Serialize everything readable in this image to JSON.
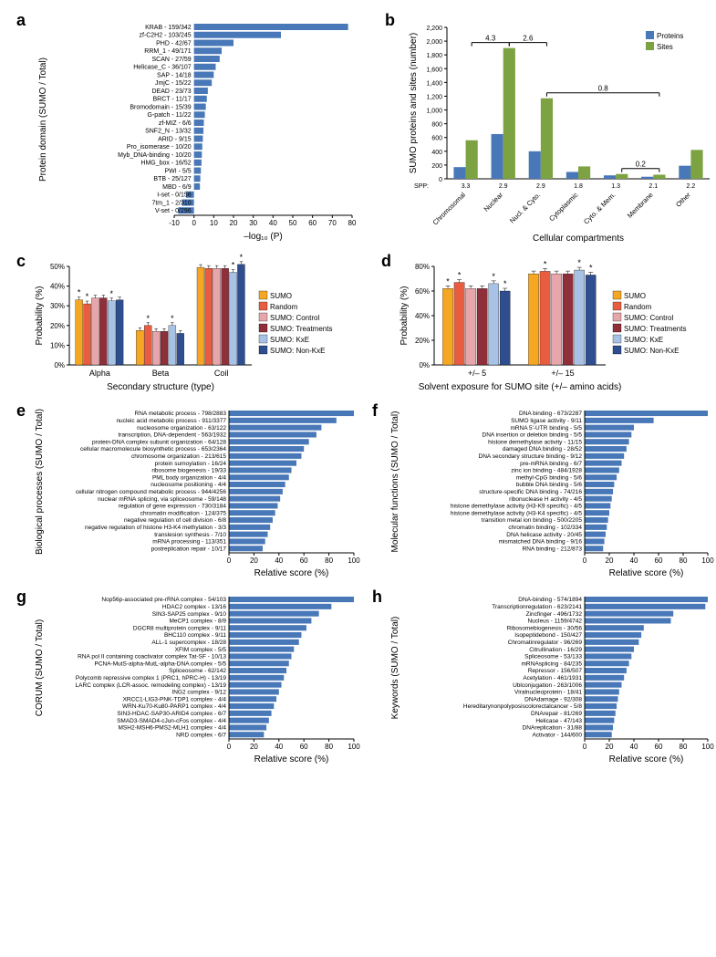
{
  "global": {
    "bar_color": "#4878b8",
    "axis_color": "#000000",
    "font": "Arial"
  },
  "a": {
    "label": "a",
    "type": "bar-h",
    "ylabel_items": [
      {
        "name": "KRAB - 159/342",
        "v": 78
      },
      {
        "name": "zf-C2H2 - 103/245",
        "v": 44
      },
      {
        "name": "PHD - 42/67",
        "v": 20
      },
      {
        "name": "RRM_1 - 49/171",
        "v": 14
      },
      {
        "name": "SCAN - 27/59",
        "v": 13
      },
      {
        "name": "Helicase_C - 36/107",
        "v": 11
      },
      {
        "name": "SAP - 14/18",
        "v": 10
      },
      {
        "name": "JmjC - 15/22",
        "v": 9
      },
      {
        "name": "DEAD - 23/73",
        "v": 7
      },
      {
        "name": "BRCT - 11/17",
        "v": 6.5
      },
      {
        "name": "Bromodomain - 15/39",
        "v": 6
      },
      {
        "name": "G-patch - 11/22",
        "v": 5.5
      },
      {
        "name": "zf-MIZ - 6/6",
        "v": 5
      },
      {
        "name": "SNF2_N - 13/32",
        "v": 4.8
      },
      {
        "name": "ARID - 9/15",
        "v": 4.5
      },
      {
        "name": "Pro_isomerase - 10/20",
        "v": 4.2
      },
      {
        "name": "Myb_DNA-binding - 10/20",
        "v": 4
      },
      {
        "name": "HMG_box - 16/52",
        "v": 3.8
      },
      {
        "name": "PWI - 5/5",
        "v": 3.5
      },
      {
        "name": "BTB - 25/127",
        "v": 3.2
      },
      {
        "name": "MBD - 6/9",
        "v": 3
      },
      {
        "name": "I-set - 0/156",
        "v": -4
      },
      {
        "name": "7tm_1 - 2/310",
        "v": -6
      },
      {
        "name": "V-set - 0/296",
        "v": -8
      }
    ],
    "xlabel": "–log₁₀ (P)",
    "ylabel": "Protein domain (SUMO / Total)",
    "xmin": -10,
    "xmax": 80,
    "xtick_step": 10
  },
  "b": {
    "label": "b",
    "type": "bar-grouped",
    "title": "",
    "legend": [
      {
        "name": "Proteins",
        "color": "#4878b8"
      },
      {
        "name": "Sites",
        "color": "#7ca242"
      }
    ],
    "categories": [
      "Chromosomal",
      "Nuclear",
      "Nucl. & Cyto.",
      "Cytoplasmic",
      "Cyto. & Mem.",
      "Membrane",
      "Other"
    ],
    "spp": [
      "3.3",
      "2.9",
      "2.9",
      "1.8",
      "1.3",
      "2.1",
      "2.2"
    ],
    "proteins": [
      170,
      650,
      400,
      100,
      50,
      30,
      190
    ],
    "sites": [
      560,
      1900,
      1170,
      180,
      70,
      60,
      420
    ],
    "ratio_brackets": [
      {
        "from": 0,
        "to": 1,
        "label": "4.3"
      },
      {
        "from": 1,
        "to": 2,
        "label": "2.6"
      },
      {
        "from": 2,
        "to": 5,
        "label": "0.8"
      },
      {
        "from": 4,
        "to": 5,
        "label": "0.2"
      }
    ],
    "xlabel": "Cellular compartments",
    "ylabel": "SUMO proteins and sites (number)",
    "ymin": 0,
    "ymax": 2200,
    "ytick_step": 200,
    "spp_label": "SPP:"
  },
  "c": {
    "label": "c",
    "type": "bar-grouped",
    "legend": [
      {
        "name": "SUMO",
        "color": "#f5a623"
      },
      {
        "name": "Random",
        "color": "#e85c3f"
      },
      {
        "name": "SUMO: Control",
        "color": "#e7a5ac"
      },
      {
        "name": "SUMO: Treatments",
        "color": "#8e2f3a"
      },
      {
        "name": "SUMO: KxE",
        "color": "#a7c2e5"
      },
      {
        "name": "SUMO: Non-KxE",
        "color": "#2e4e8f"
      }
    ],
    "groups": [
      "Alpha",
      "Beta",
      "Coil"
    ],
    "values": [
      [
        33,
        31,
        34,
        34,
        32.5,
        33
      ],
      [
        17.5,
        20,
        17,
        17,
        20,
        16
      ],
      [
        49.5,
        49,
        49,
        49,
        47,
        51
      ]
    ],
    "sig": [
      [
        true,
        true,
        false,
        false,
        true,
        false
      ],
      [
        false,
        true,
        false,
        false,
        true,
        false
      ],
      [
        false,
        false,
        false,
        false,
        true,
        true
      ]
    ],
    "xlabel": "Secondary structure (type)",
    "ylabel": "Probability (%)",
    "ymin": 0,
    "ymax": 50,
    "yticks": [
      0,
      10,
      20,
      30,
      40,
      50
    ],
    "star": "*"
  },
  "d": {
    "label": "d",
    "type": "bar-grouped",
    "legend_shared_with": "c",
    "legend": [
      {
        "name": "SUMO",
        "color": "#f5a623"
      },
      {
        "name": "Random",
        "color": "#e85c3f"
      },
      {
        "name": "SUMO: Control",
        "color": "#e7a5ac"
      },
      {
        "name": "SUMO: Treatments",
        "color": "#8e2f3a"
      },
      {
        "name": "SUMO: KxE",
        "color": "#a7c2e5"
      },
      {
        "name": "SUMO: Non-KxE",
        "color": "#2e4e8f"
      }
    ],
    "groups": [
      "+/– 5",
      "+/– 15"
    ],
    "values": [
      [
        62,
        67,
        62,
        62,
        66,
        60
      ],
      [
        74,
        76,
        74,
        74,
        77,
        73
      ]
    ],
    "sig": [
      [
        true,
        true,
        false,
        false,
        true,
        true
      ],
      [
        false,
        true,
        false,
        false,
        true,
        true
      ]
    ],
    "xlabel": "Solvent exposure for SUMO site (+/– amino acids)",
    "ylabel": "Probability (%)",
    "ymin": 0,
    "ymax": 80,
    "yticks": [
      0,
      20,
      40,
      60,
      80
    ],
    "star": "*"
  },
  "e": {
    "label": "e",
    "ylabel": "Biological processes (SUMO / Total)",
    "xlabel": "Relative score (%)",
    "xmin": 0,
    "xmax": 100,
    "xtick_step": 20,
    "items": [
      {
        "name": "RNA metabolic process - 798/2883",
        "v": 100
      },
      {
        "name": "nucleic acid metabolic process - 911/3377",
        "v": 86
      },
      {
        "name": "nucleosome organization - 63/122",
        "v": 74
      },
      {
        "name": "transcription, DNA-dependent - 563/1932",
        "v": 70
      },
      {
        "name": "protein-DNA complex subunit organization - 64/128",
        "v": 64
      },
      {
        "name": "cellular macromolecule biosynthetic process - 653/2364",
        "v": 60
      },
      {
        "name": "chromosome organization - 213/615",
        "v": 58
      },
      {
        "name": "protein sumoylation - 16/24",
        "v": 54
      },
      {
        "name": "ribosome biogenesis - 19/33",
        "v": 50
      },
      {
        "name": "PML body organization - 4/4",
        "v": 48
      },
      {
        "name": "nucleosome positioning - 4/4",
        "v": 45
      },
      {
        "name": "cellular nitrogen compound metabolic process - 944/4256",
        "v": 43
      },
      {
        "name": "nuclear mRNA splicing, via spliceosome - 59/148",
        "v": 41
      },
      {
        "name": "regulation of gene expression - 730/3184",
        "v": 39
      },
      {
        "name": "chromatin modification - 124/375",
        "v": 37
      },
      {
        "name": "negative regulation of cell division - 6/8",
        "v": 35
      },
      {
        "name": "negative regulation of histone H3-K4 methylation - 3/3",
        "v": 33
      },
      {
        "name": "translesion synthesis - 7/10",
        "v": 31
      },
      {
        "name": "mRNA processing - 113/351",
        "v": 29
      },
      {
        "name": "postreplication repair - 10/17",
        "v": 27
      }
    ]
  },
  "f": {
    "label": "f",
    "ylabel": "Molecular functions (SUMO / Total)",
    "xlabel": "Relative score (%)",
    "xmin": 0,
    "xmax": 100,
    "xtick_step": 20,
    "items": [
      {
        "name": "DNA binding - 673/2287",
        "v": 100
      },
      {
        "name": "SUMO ligase activity - 9/11",
        "v": 56
      },
      {
        "name": "mRNA 5'-UTR binding - 5/5",
        "v": 40
      },
      {
        "name": "DNA insertion or deletion binding - 5/5",
        "v": 38
      },
      {
        "name": "histone demethylase activity - 11/15",
        "v": 36
      },
      {
        "name": "damaged DNA binding - 28/52",
        "v": 34
      },
      {
        "name": "DNA secondary structure binding - 9/12",
        "v": 32
      },
      {
        "name": "pre-mRNA binding - 6/7",
        "v": 30
      },
      {
        "name": "zinc ion binding - 484/1928",
        "v": 28
      },
      {
        "name": "methyl-CpG binding - 5/6",
        "v": 26
      },
      {
        "name": "bubble DNA binding - 5/6",
        "v": 24
      },
      {
        "name": "structure-specific DNA binding - 74/216",
        "v": 23
      },
      {
        "name": "ribonuclease H activity - 4/5",
        "v": 22
      },
      {
        "name": "histone demethylase activity (H3-K9 specific) - 4/5",
        "v": 21
      },
      {
        "name": "histone demethylase activity (H3-K4 specific) - 4/5",
        "v": 20
      },
      {
        "name": "transition metal ion binding - 500/2205",
        "v": 19
      },
      {
        "name": "chromatin binding - 102/334",
        "v": 18
      },
      {
        "name": "DNA helicase activity - 20/45",
        "v": 17
      },
      {
        "name": "mismatched DNA binding - 9/16",
        "v": 16
      },
      {
        "name": "RNA binding - 212/873",
        "v": 15
      }
    ]
  },
  "g": {
    "label": "g",
    "ylabel": "CORUM (SUMO / Total)",
    "xlabel": "Relative score (%)",
    "xmin": 0,
    "xmax": 100,
    "xtick_step": 20,
    "items": [
      {
        "name": "Nop56p-associated pre-rRNA complex - 54/103",
        "v": 100
      },
      {
        "name": "HDAC2 complex - 13/16",
        "v": 82
      },
      {
        "name": "SIN3-SAP25 complex - 9/10",
        "v": 72
      },
      {
        "name": "MeCP1 complex - 8/9",
        "v": 66
      },
      {
        "name": "DGCR8 multiprotein complex - 9/11",
        "v": 62
      },
      {
        "name": "BHC110 complex - 9/11",
        "v": 58
      },
      {
        "name": "ALL-1 supercomplex - 18/28",
        "v": 56
      },
      {
        "name": "XFIM complex - 5/5",
        "v": 52
      },
      {
        "name": "RNA pol II containing coactivator complex Tat-SF - 10/13",
        "v": 50
      },
      {
        "name": "PCNA-MutS-alpha-MutL-alpha-DNA complex - 5/5",
        "v": 48
      },
      {
        "name": "Spliceosome - 62/142",
        "v": 46
      },
      {
        "name": "Polycomb repressive complex 1 (PRC1, hPRC-H) - 13/19",
        "v": 44
      },
      {
        "name": "LARC complex (LCR-assoc. remodeling complex) - 13/19",
        "v": 42
      },
      {
        "name": "ING2 complex - 9/12",
        "v": 40
      },
      {
        "name": "XRCC1-LIG3-PNK-TDP1 complex - 4/4",
        "v": 38
      },
      {
        "name": "WRN-Ku70-Ku80-PARP1 complex - 4/4",
        "v": 36
      },
      {
        "name": "SIN3-HDAC-SAP30-ARID4 complex - 6/7",
        "v": 34
      },
      {
        "name": "SMAD3-SMAD4-cJun-cFos complex - 4/4",
        "v": 32
      },
      {
        "name": "MSH2-MSH6-PMS2-MLH1 complex - 4/4",
        "v": 30
      },
      {
        "name": "NRD complex - 6/7",
        "v": 28
      }
    ]
  },
  "h": {
    "label": "h",
    "ylabel": "Keywords (SUMO / Total)",
    "xlabel": "Relative score (%)",
    "xmin": 0,
    "xmax": 100,
    "xtick_step": 20,
    "items": [
      {
        "name": "DNA-binding - 574/1894",
        "v": 100
      },
      {
        "name": "Transcriptionregulation - 623/2141",
        "v": 98
      },
      {
        "name": "Zincfinger - 496/1732",
        "v": 72
      },
      {
        "name": "Nucleus - 1159/4742",
        "v": 70
      },
      {
        "name": "Ribosomebiogenesis - 30/56",
        "v": 48
      },
      {
        "name": "Isopeptidebond - 150/427",
        "v": 46
      },
      {
        "name": "Chromatinregulator - 96/269",
        "v": 44
      },
      {
        "name": "Citrullination - 16/29",
        "v": 40
      },
      {
        "name": "Spliceosome - 53/133",
        "v": 38
      },
      {
        "name": "mRNAsplicing - 84/235",
        "v": 36
      },
      {
        "name": "Repressor - 156/507",
        "v": 34
      },
      {
        "name": "Acetylation - 461/1931",
        "v": 32
      },
      {
        "name": "Ublconjugation - 263/1006",
        "v": 30
      },
      {
        "name": "Viralnucleoprotein - 18/41",
        "v": 28
      },
      {
        "name": "DNAdamage - 92/308",
        "v": 27
      },
      {
        "name": "Hereditarynonpolyposiscolorectalcancer - 5/8",
        "v": 26
      },
      {
        "name": "DNArepair - 81/269",
        "v": 25
      },
      {
        "name": "Helicase - 47/143",
        "v": 24
      },
      {
        "name": "DNAreplication - 31/88",
        "v": 23
      },
      {
        "name": "Activator - 144/600",
        "v": 22
      }
    ]
  }
}
